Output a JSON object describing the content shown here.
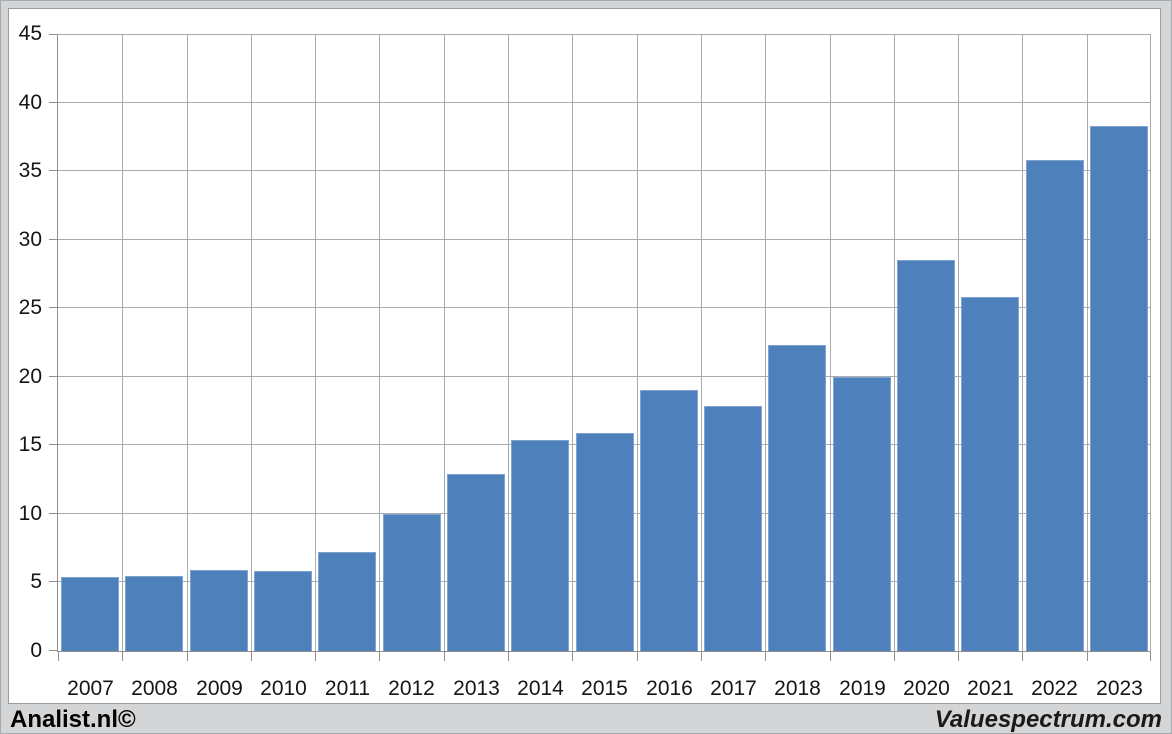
{
  "chart_data": {
    "type": "bar",
    "categories": [
      "2007",
      "2008",
      "2009",
      "2010",
      "2011",
      "2012",
      "2013",
      "2014",
      "2015",
      "2016",
      "2017",
      "2018",
      "2019",
      "2020",
      "2021",
      "2022",
      "2023"
    ],
    "values": [
      5.4,
      5.5,
      5.9,
      5.8,
      7.2,
      10.0,
      12.9,
      15.4,
      15.9,
      19.0,
      17.9,
      22.3,
      20.0,
      28.5,
      25.8,
      35.8,
      38.3
    ],
    "ylim": [
      0,
      45
    ],
    "ytick_step": 5,
    "yticks": [
      0,
      5,
      10,
      15,
      20,
      25,
      30,
      35,
      40,
      45
    ],
    "grid": true,
    "legend": "none",
    "bar_color": "#4e80bc",
    "bar_border_color": "#7fa4d1",
    "grid_color": "#aaabad",
    "axis_color": "#8f8f8f",
    "label_color": "#151515"
  },
  "footer": {
    "left_brand": "Analist.nl©",
    "right_brand": "Valuespectrum.com"
  }
}
